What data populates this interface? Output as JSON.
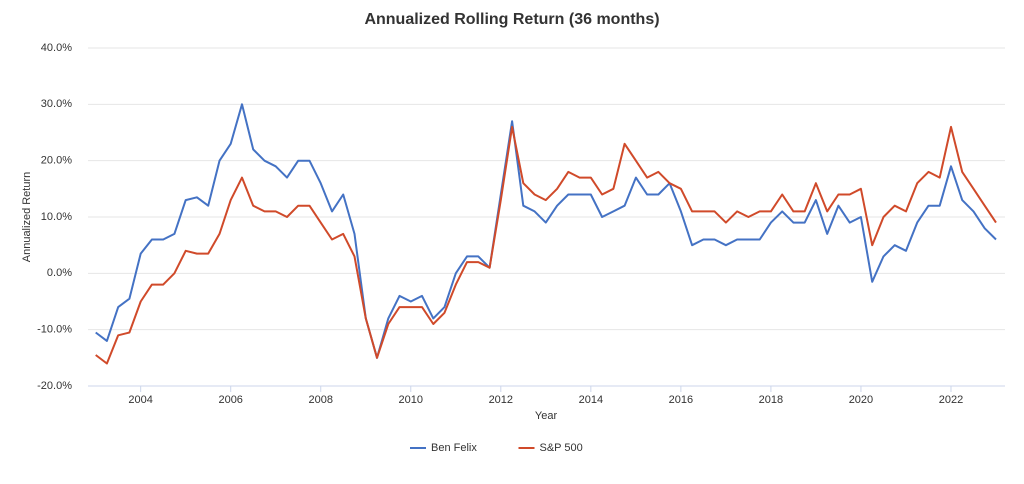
{
  "chart_data": {
    "type": "line",
    "title": "Annualized Rolling Return (36 months)",
    "x_label": "Year",
    "y_label": "Annualized Return",
    "x": [
      2003,
      2003.25,
      2003.5,
      2003.75,
      2004,
      2004.25,
      2004.5,
      2004.75,
      2005,
      2005.25,
      2005.5,
      2005.75,
      2006,
      2006.25,
      2006.5,
      2006.75,
      2007,
      2007.25,
      2007.5,
      2007.75,
      2008,
      2008.25,
      2008.5,
      2008.75,
      2009,
      2009.25,
      2009.5,
      2009.75,
      2010,
      2010.25,
      2010.5,
      2010.75,
      2011,
      2011.25,
      2011.5,
      2011.75,
      2012,
      2012.25,
      2012.5,
      2012.75,
      2013,
      2013.25,
      2013.5,
      2013.75,
      2014,
      2014.25,
      2014.5,
      2014.75,
      2015,
      2015.25,
      2015.5,
      2015.75,
      2016,
      2016.25,
      2016.5,
      2016.75,
      2017,
      2017.25,
      2017.5,
      2017.75,
      2018,
      2018.25,
      2018.5,
      2018.75,
      2019,
      2019.25,
      2019.5,
      2019.75,
      2020,
      2020.25,
      2020.5,
      2020.75,
      2021,
      2021.25,
      2021.5,
      2021.75,
      2022,
      2022.25,
      2022.5,
      2022.75,
      2023
    ],
    "series": [
      {
        "name": "Ben Felix",
        "color": "#4472c4",
        "values": [
          -10.5,
          -12,
          -6,
          -4.5,
          3.5,
          6,
          6,
          7,
          13,
          13.5,
          12,
          20,
          23,
          30,
          22,
          20,
          19,
          17,
          20,
          20,
          16,
          11,
          14,
          7,
          -8,
          -15,
          -8,
          -4,
          -5,
          -4,
          -8,
          -6,
          0,
          3,
          3,
          1,
          14,
          27,
          12,
          11,
          9,
          12,
          14,
          14,
          14,
          10,
          11,
          12,
          17,
          14,
          14,
          16,
          11,
          5,
          6,
          6,
          5,
          6,
          6,
          6,
          9,
          11,
          9,
          9,
          13,
          7,
          12,
          9,
          10,
          -1.5,
          3,
          5,
          4,
          9,
          12,
          12,
          19,
          13,
          11,
          8,
          6
        ]
      },
      {
        "name": "S&P 500",
        "color": "#d04a2a",
        "values": [
          -14.5,
          -16,
          -11,
          -10.5,
          -5,
          -2,
          -2,
          0,
          4,
          3.5,
          3.5,
          7,
          13,
          17,
          12,
          11,
          11,
          10,
          12,
          12,
          9,
          6,
          7,
          3,
          -8,
          -15,
          -9,
          -6,
          -6,
          -6,
          -9,
          -7,
          -2,
          2,
          2,
          1,
          13,
          26,
          16,
          14,
          13,
          15,
          18,
          17,
          17,
          14,
          15,
          23,
          20,
          17,
          18,
          16,
          15,
          11,
          11,
          11,
          9,
          11,
          10,
          11,
          11,
          14,
          11,
          11,
          16,
          11,
          14,
          14,
          15,
          5,
          10,
          12,
          11,
          16,
          18,
          17,
          26,
          18,
          15,
          12,
          9
        ]
      }
    ],
    "xlim": [
      2002.83,
      2023.2
    ],
    "xticks": [
      2004,
      2006,
      2008,
      2010,
      2012,
      2014,
      2016,
      2018,
      2020,
      2022
    ],
    "ylim": [
      -20,
      40
    ],
    "yticks": [
      {
        "value": -20,
        "label": "-20.0%"
      },
      {
        "value": -10,
        "label": "-10.0%"
      },
      {
        "value": 0,
        "label": "0.0%"
      },
      {
        "value": 10,
        "label": "10.0%"
      },
      {
        "value": 20,
        "label": "20.0%"
      },
      {
        "value": 30,
        "label": "30.0%"
      },
      {
        "value": 40,
        "label": "40.0%"
      }
    ],
    "grid": true,
    "legend": "bottom"
  }
}
